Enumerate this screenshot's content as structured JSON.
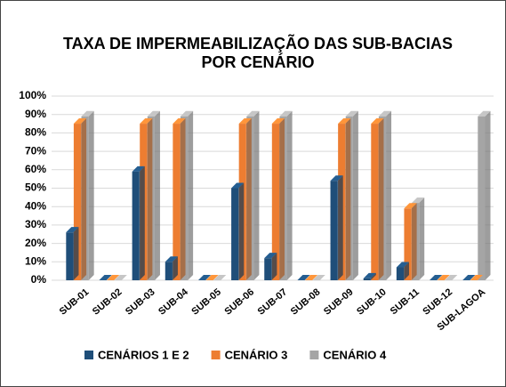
{
  "chart_data": {
    "type": "bar",
    "title": [
      "TAXA DE IMPERMEABILIZAÇÃO DAS SUB-BACIAS",
      "POR CENÁRIO"
    ],
    "categories": [
      "SUB-01",
      "SUB-02",
      "SUB-03",
      "SUB-04",
      "SUB-05",
      "SUB-06",
      "SUB-07",
      "SUB-08",
      "SUB-09",
      "SUB-10",
      "SUB-11",
      "SUB-12",
      "SUB-LAGOA"
    ],
    "series": [
      {
        "name": "CENÁRIOS 1 E 2",
        "color": "#1f4e79",
        "values": [
          26,
          0,
          59,
          10,
          0,
          50,
          12,
          0,
          54,
          1,
          7,
          0,
          0
        ]
      },
      {
        "name": "CENÁRIO 3",
        "color": "#ed7d31",
        "values": [
          85,
          0,
          85,
          85,
          0,
          85,
          85,
          0,
          85,
          85,
          39,
          0,
          0
        ]
      },
      {
        "name": "CENÁRIO 4",
        "color": "#a5a5a5",
        "values": [
          89,
          0,
          89,
          89,
          0,
          89,
          89,
          0,
          89,
          89,
          42,
          0,
          89
        ]
      }
    ],
    "ylim": [
      0,
      100
    ],
    "yticks": [
      {
        "value": 0,
        "label": "0%"
      },
      {
        "value": 10,
        "label": "10%"
      },
      {
        "value": 20,
        "label": "20%"
      },
      {
        "value": 30,
        "label": "30%"
      },
      {
        "value": 40,
        "label": "40%"
      },
      {
        "value": 50,
        "label": "50%"
      },
      {
        "value": 60,
        "label": "60%"
      },
      {
        "value": 70,
        "label": "70%"
      },
      {
        "value": 80,
        "label": "80%"
      },
      {
        "value": 90,
        "label": "90%"
      },
      {
        "value": 100,
        "label": "100%"
      }
    ],
    "grid": true,
    "legend": "bottom"
  }
}
